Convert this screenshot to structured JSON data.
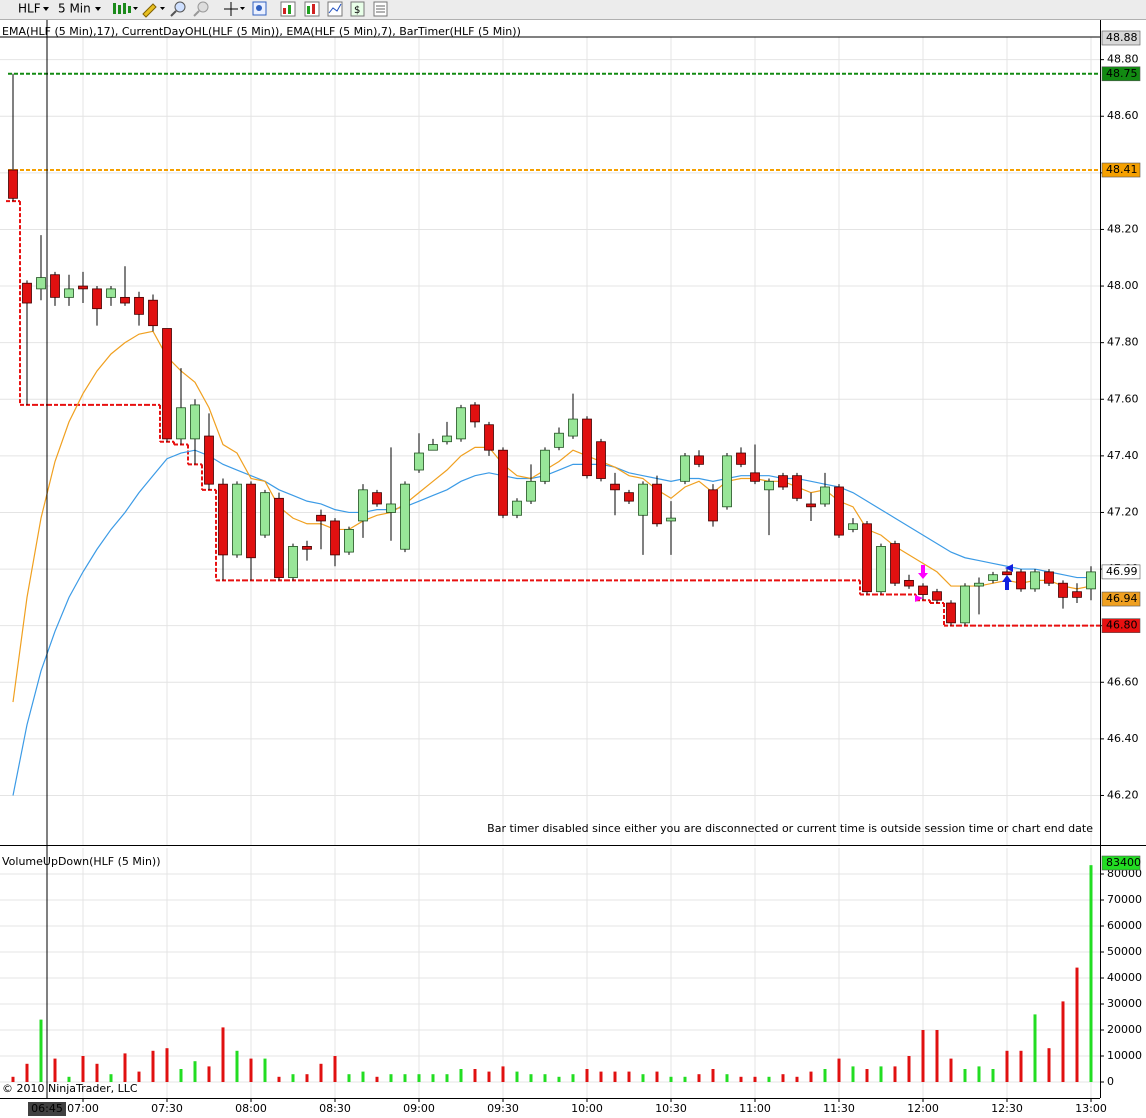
{
  "toolbar": {
    "instrument": "HLF",
    "interval": "5 Min"
  },
  "chart_data": {
    "type": "candlestick",
    "indicator_label": "EMA(HLF (5 Min),17), CurrentDayOHL(HLF (5 Min)), EMA(HLF (5 Min),7), BarTimer(HLF (5 Min))",
    "bar_timer_note": "Bar timer disabled since either you are disconnected or current time is outside session time or chart end date",
    "copyright": "© 2010 NinjaTrader, LLC",
    "categories": [
      null,
      null,
      "06:45",
      null,
      null,
      "07:00",
      null,
      null,
      null,
      null,
      null,
      "07:30",
      null,
      null,
      null,
      null,
      null,
      "08:00",
      null,
      null,
      null,
      null,
      null,
      "08:30",
      null,
      null,
      null,
      null,
      null,
      "09:00",
      null,
      null,
      null,
      null,
      null,
      "09:30",
      null,
      null,
      null,
      null,
      null,
      "10:00",
      null,
      null,
      null,
      null,
      null,
      "10:30",
      null,
      null,
      null,
      null,
      null,
      "11:00",
      null,
      null,
      null,
      null,
      null,
      "11:30",
      null,
      null,
      null,
      null,
      null,
      "12:00",
      null,
      null,
      null,
      null,
      null,
      "12:30",
      null,
      null,
      null,
      null,
      null,
      "13:00"
    ],
    "open": [
      48.41,
      48.01,
      47.99,
      48.04,
      47.96,
      48.0,
      47.99,
      47.96,
      47.96,
      47.96,
      47.95,
      47.85,
      47.46,
      47.46,
      47.47,
      47.3,
      47.05,
      47.3,
      47.12,
      47.25,
      46.97,
      47.08,
      47.19,
      47.17,
      47.06,
      47.17,
      47.27,
      47.2,
      47.07,
      47.35,
      47.42,
      47.45,
      47.46,
      47.58,
      47.51,
      47.42,
      47.19,
      47.24,
      47.31,
      47.43,
      47.47,
      47.53,
      47.45,
      47.3,
      47.27,
      47.19,
      47.3,
      47.17,
      47.31,
      47.4,
      47.28,
      47.22,
      47.41,
      47.34,
      47.28,
      47.33,
      47.33,
      47.23,
      47.23,
      47.29,
      47.14,
      47.16,
      46.92,
      47.09,
      46.96,
      46.94,
      46.92,
      46.88,
      46.81,
      46.94,
      46.96,
      46.99,
      46.99,
      46.93,
      46.99,
      46.95,
      46.92,
      46.93
    ],
    "high": [
      48.75,
      48.02,
      48.18,
      48.05,
      48.04,
      48.05,
      48.0,
      48.0,
      48.07,
      47.98,
      47.97,
      47.85,
      47.71,
      47.6,
      47.55,
      47.32,
      47.31,
      47.31,
      47.28,
      47.27,
      47.09,
      47.1,
      47.21,
      47.18,
      47.15,
      47.3,
      47.28,
      47.43,
      47.31,
      47.48,
      47.46,
      47.52,
      47.58,
      47.59,
      47.52,
      47.43,
      47.25,
      47.37,
      47.43,
      47.5,
      47.62,
      47.54,
      47.46,
      47.34,
      47.28,
      47.31,
      47.33,
      47.24,
      47.41,
      47.42,
      47.3,
      47.41,
      47.43,
      47.44,
      47.32,
      47.34,
      47.34,
      47.27,
      47.34,
      47.3,
      47.18,
      47.17,
      47.09,
      47.1,
      46.98,
      46.95,
      46.93,
      46.89,
      46.95,
      46.97,
      46.99,
      47.0,
      47.0,
      47.0,
      47.0,
      46.96,
      46.95,
      47.01
    ],
    "low": [
      48.3,
      47.58,
      47.95,
      47.93,
      47.93,
      47.94,
      47.86,
      47.93,
      47.93,
      47.86,
      47.84,
      47.45,
      47.44,
      47.37,
      47.28,
      46.96,
      47.04,
      46.96,
      47.11,
      46.96,
      46.96,
      47.03,
      47.07,
      47.01,
      47.05,
      47.11,
      47.22,
      47.1,
      47.06,
      47.34,
      47.42,
      47.44,
      47.45,
      47.5,
      47.4,
      47.18,
      47.18,
      47.23,
      47.3,
      47.42,
      47.46,
      47.32,
      47.31,
      47.19,
      47.23,
      47.05,
      47.15,
      47.05,
      47.3,
      47.36,
      47.15,
      47.21,
      47.36,
      47.3,
      47.12,
      47.28,
      47.24,
      47.17,
      47.22,
      47.11,
      47.13,
      46.91,
      46.91,
      46.94,
      46.93,
      46.89,
      46.88,
      46.8,
      46.8,
      46.84,
      46.95,
      46.97,
      46.92,
      46.92,
      46.94,
      46.86,
      46.88,
      46.89
    ],
    "close": [
      48.31,
      47.94,
      48.03,
      47.96,
      47.99,
      47.99,
      47.92,
      47.99,
      47.94,
      47.9,
      47.86,
      47.46,
      47.57,
      47.58,
      47.3,
      47.05,
      47.3,
      47.04,
      47.27,
      46.97,
      47.08,
      47.07,
      47.17,
      47.05,
      47.14,
      47.28,
      47.23,
      47.23,
      47.3,
      47.41,
      47.44,
      47.47,
      47.57,
      47.52,
      47.42,
      47.19,
      47.24,
      47.31,
      47.42,
      47.48,
      47.53,
      47.33,
      47.32,
      47.28,
      47.24,
      47.3,
      47.16,
      47.18,
      47.4,
      47.37,
      47.17,
      47.4,
      47.37,
      47.31,
      47.31,
      47.29,
      47.25,
      47.22,
      47.29,
      47.12,
      47.16,
      46.92,
      47.08,
      46.95,
      46.94,
      46.91,
      46.89,
      46.81,
      46.94,
      46.95,
      46.98,
      46.98,
      46.93,
      46.99,
      46.95,
      46.9,
      46.9,
      46.99
    ],
    "up_color": "#98e698",
    "down_color": "#e01010",
    "ylim": [
      46.025,
      48.88
    ],
    "yticks": [
      {
        "value": 46.2,
        "label": "46.20"
      },
      {
        "value": 46.4,
        "label": "46.40"
      },
      {
        "value": 46.6,
        "label": "46.60"
      },
      {
        "value": 46.8,
        "label": "46.80"
      },
      {
        "value": 47.0,
        "label": "47.00"
      },
      {
        "value": 47.2,
        "label": "47.20"
      },
      {
        "value": 47.4,
        "label": "47.40"
      },
      {
        "value": 47.6,
        "label": "47.60"
      },
      {
        "value": 47.8,
        "label": "47.80"
      },
      {
        "value": 48.0,
        "label": "48.00"
      },
      {
        "value": 48.2,
        "label": "48.20"
      },
      {
        "value": 48.4,
        "label": "48.40"
      },
      {
        "value": 48.6,
        "label": "48.60"
      },
      {
        "value": 48.8,
        "label": "48.80"
      }
    ],
    "grid": true,
    "ema_lines": [
      {
        "color": "#3c9be6",
        "values": [
          46.2,
          46.45,
          46.64,
          46.78,
          46.9,
          46.99,
          47.07,
          47.14,
          47.2,
          47.27,
          47.33,
          47.39,
          47.41,
          47.42,
          47.4,
          47.37,
          47.35,
          47.33,
          47.31,
          47.28,
          47.26,
          47.24,
          47.23,
          47.21,
          47.2,
          47.2,
          47.21,
          47.21,
          47.22,
          47.24,
          47.26,
          47.28,
          47.31,
          47.33,
          47.34,
          47.33,
          47.32,
          47.32,
          47.33,
          47.35,
          47.37,
          47.37,
          47.37,
          47.36,
          47.34,
          47.33,
          47.32,
          47.31,
          47.32,
          47.32,
          47.31,
          47.32,
          47.33,
          47.33,
          47.33,
          47.32,
          47.32,
          47.31,
          47.3,
          47.29,
          47.27,
          47.24,
          47.21,
          47.18,
          47.15,
          47.12,
          47.09,
          47.06,
          47.04,
          47.03,
          47.02,
          47.01,
          47.0,
          47.0,
          46.99,
          46.98,
          46.97,
          46.97
        ]
      },
      {
        "color": "#f0a020",
        "values": [
          46.53,
          46.9,
          47.18,
          47.38,
          47.52,
          47.62,
          47.7,
          47.76,
          47.8,
          47.83,
          47.84,
          47.75,
          47.7,
          47.66,
          47.57,
          47.44,
          47.41,
          47.32,
          47.31,
          47.22,
          47.18,
          47.16,
          47.16,
          47.14,
          47.14,
          47.17,
          47.19,
          47.2,
          47.23,
          47.27,
          47.31,
          47.35,
          47.4,
          47.43,
          47.43,
          47.37,
          47.33,
          47.32,
          47.35,
          47.38,
          47.42,
          47.4,
          47.38,
          47.36,
          47.33,
          47.32,
          47.28,
          47.25,
          47.29,
          47.31,
          47.27,
          47.31,
          47.32,
          47.32,
          47.31,
          47.31,
          47.29,
          47.27,
          47.28,
          47.24,
          47.22,
          47.14,
          47.12,
          47.08,
          47.05,
          47.02,
          46.99,
          46.94,
          46.94,
          46.94,
          46.95,
          46.96,
          46.95,
          46.96,
          46.96,
          46.94,
          46.93,
          46.94
        ]
      }
    ],
    "day_high": {
      "value": 48.75,
      "color": "#128a12"
    },
    "day_open": {
      "value": 48.41,
      "color": "#f5a000"
    },
    "day_low": {
      "color": "#e81010",
      "marker_label": "46.80",
      "values": [
        48.3,
        47.58,
        47.58,
        47.58,
        47.58,
        47.58,
        47.58,
        47.58,
        47.58,
        47.58,
        47.58,
        47.45,
        47.44,
        47.37,
        47.28,
        46.96,
        46.96,
        46.96,
        46.96,
        46.96,
        46.96,
        46.96,
        46.96,
        46.96,
        46.96,
        46.96,
        46.96,
        46.96,
        46.96,
        46.96,
        46.96,
        46.96,
        46.96,
        46.96,
        46.96,
        46.96,
        46.96,
        46.96,
        46.96,
        46.96,
        46.96,
        46.96,
        46.96,
        46.96,
        46.96,
        46.96,
        46.96,
        46.96,
        46.96,
        46.96,
        46.96,
        46.96,
        46.96,
        46.96,
        46.96,
        46.96,
        46.96,
        46.96,
        46.96,
        46.96,
        46.96,
        46.91,
        46.91,
        46.91,
        46.91,
        46.89,
        46.88,
        46.8,
        46.8,
        46.8,
        46.8,
        46.8,
        46.8,
        46.8,
        46.8,
        46.8,
        46.8,
        46.8
      ]
    },
    "crosshair": {
      "category": 2,
      "price": 48.88
    },
    "volume": {
      "label": "VolumeUpDown(HLF (5 Min))",
      "ylim": [
        -6154,
        90000
      ],
      "yticks": [
        0,
        10000,
        20000,
        30000,
        40000,
        50000,
        60000,
        70000,
        80000
      ],
      "values": [
        2000,
        7000,
        24000,
        9000,
        2000,
        10000,
        7000,
        3000,
        11000,
        4000,
        12000,
        13000,
        5000,
        8000,
        6000,
        21000,
        12000,
        9000,
        9000,
        2000,
        3000,
        3000,
        7000,
        10000,
        3000,
        4000,
        2000,
        3000,
        3000,
        3000,
        3000,
        3000,
        5000,
        5000,
        4000,
        6000,
        4000,
        3000,
        3000,
        2000,
        3000,
        5000,
        4000,
        4000,
        4000,
        3000,
        4000,
        2000,
        2000,
        3000,
        5000,
        3000,
        2000,
        2000,
        2000,
        3000,
        2000,
        4000,
        5000,
        9000,
        6000,
        5000,
        6000,
        6000,
        10000,
        20000,
        20000,
        9000,
        5000,
        6000,
        5000,
        12000,
        12000,
        26000,
        13000,
        31000,
        44000,
        83400
      ],
      "up_color": "#22dd22",
      "down_color": "#e01010"
    }
  }
}
